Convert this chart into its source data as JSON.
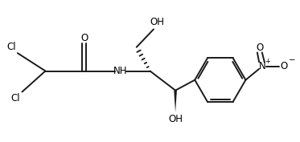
{
  "bg_color": "#ffffff",
  "line_color": "#1a1a1a",
  "line_width": 1.4,
  "font_size": 8.5,
  "fig_width": 3.73,
  "fig_height": 1.77,
  "dpi": 100,
  "xlim": [
    0,
    10
  ],
  "ylim": [
    0,
    4.7
  ]
}
